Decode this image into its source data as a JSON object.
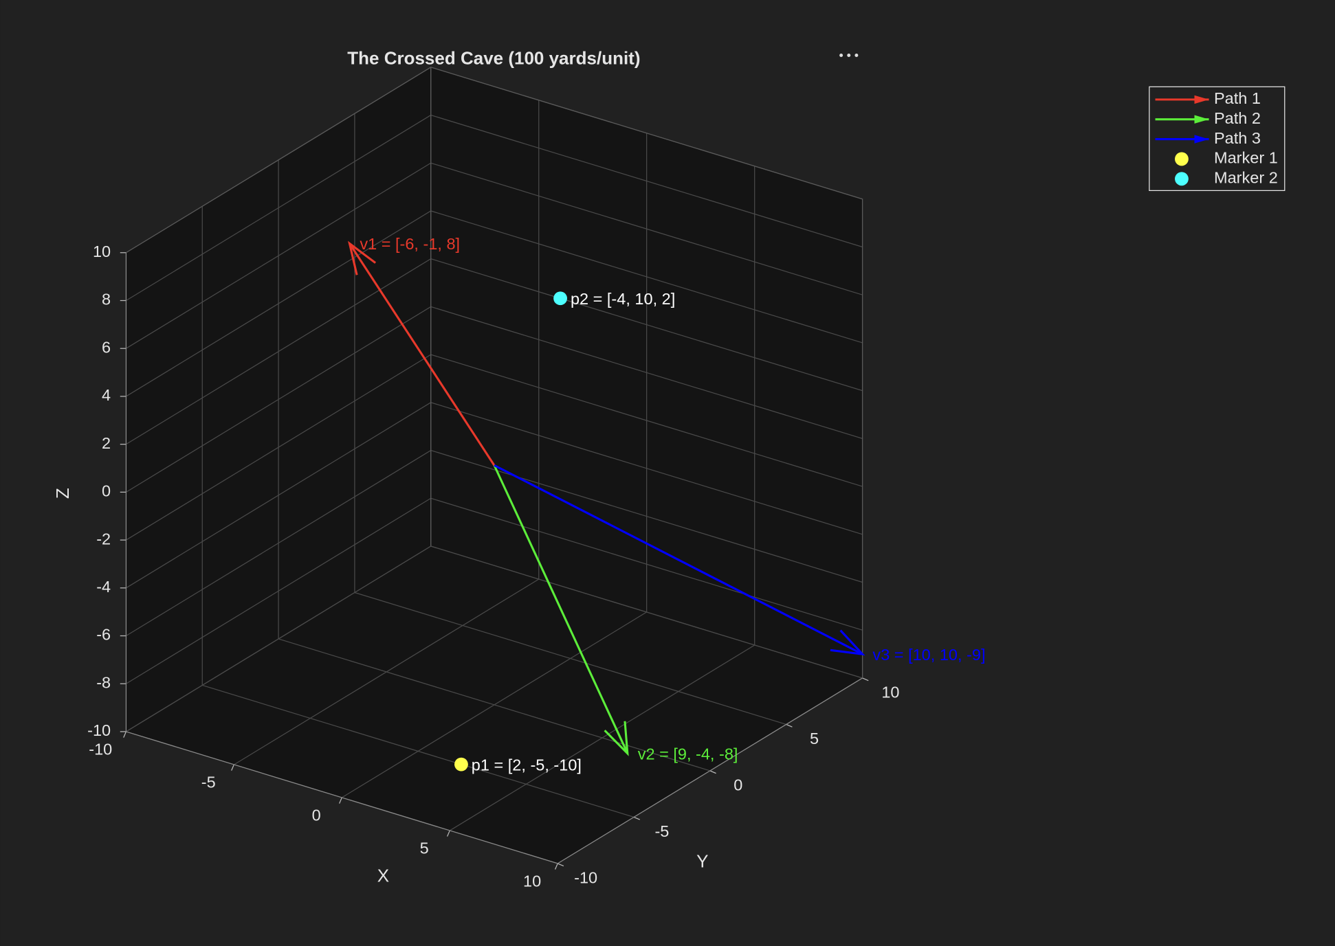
{
  "chart_data": {
    "type": "quiver3",
    "title": "The Crossed Cave (100 yards/unit)",
    "xlabel": "X",
    "ylabel": "Y",
    "zlabel": "Z",
    "xlim": [
      -10,
      10
    ],
    "ylim": [
      -10,
      10
    ],
    "zlim": [
      -10,
      10
    ],
    "xticks": [
      -10,
      -5,
      0,
      5,
      10
    ],
    "yticks": [
      -10,
      -5,
      0,
      5,
      10
    ],
    "zticks": [
      -10,
      -8,
      -6,
      -4,
      -2,
      0,
      2,
      4,
      6,
      8,
      10
    ],
    "grid": true,
    "legend_location": "northeastoutside",
    "series": [
      {
        "name": "Path 1",
        "color": "#e8392b",
        "values": [
          -6,
          -1,
          8
        ],
        "label": "v1 = [-6, -1, 8]"
      },
      {
        "name": "Path 2",
        "color": "#5ced3a",
        "values": [
          9,
          -4,
          -8
        ],
        "label": "v2 = [9, -4, -8]"
      },
      {
        "name": "Path 3",
        "color": "#0000ff",
        "values": [
          10,
          10,
          -9
        ],
        "label": "v3 = [10, 10, -9]"
      }
    ],
    "markers": [
      {
        "name": "Marker 1",
        "color": "#ffff4d",
        "values": [
          2,
          -5,
          -10
        ],
        "label": "p1 = [2, -5, -10]"
      },
      {
        "name": "Marker 2",
        "color": "#4dffff",
        "values": [
          -4,
          10,
          2
        ],
        "label": "p2 = [-4, 10, 2]"
      }
    ]
  }
}
